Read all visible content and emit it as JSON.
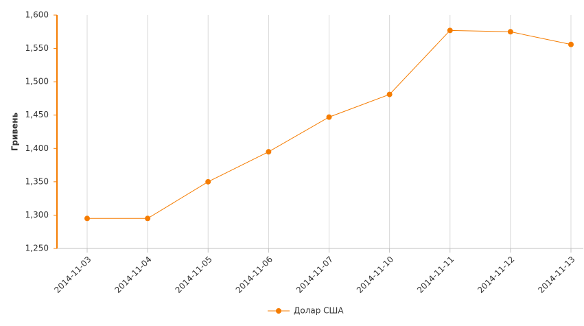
{
  "chart_data": {
    "type": "line",
    "y_label": "Гривень",
    "categories": [
      "2014-11-03",
      "2014-11-04",
      "2014-11-05",
      "2014-11-06",
      "2014-11-07",
      "2014-11-10",
      "2014-11-11",
      "2014-11-12",
      "2014-11-13"
    ],
    "series": [
      {
        "name": "Долар США",
        "color": "#f57c00",
        "values": [
          1295,
          1295,
          1350,
          1395,
          1447,
          1481,
          1577,
          1575,
          1556
        ]
      }
    ],
    "ylim": [
      1250,
      1600
    ],
    "yticks": [
      {
        "value": 1250,
        "label": "1,250"
      },
      {
        "value": 1300,
        "label": "1,300"
      },
      {
        "value": 1350,
        "label": "1,350"
      },
      {
        "value": 1400,
        "label": "1,400"
      },
      {
        "value": 1450,
        "label": "1,450"
      },
      {
        "value": 1500,
        "label": "1,500"
      },
      {
        "value": 1550,
        "label": "1,550"
      },
      {
        "value": 1600,
        "label": "1,600"
      }
    ],
    "grid": "x",
    "legend": "bottom"
  }
}
